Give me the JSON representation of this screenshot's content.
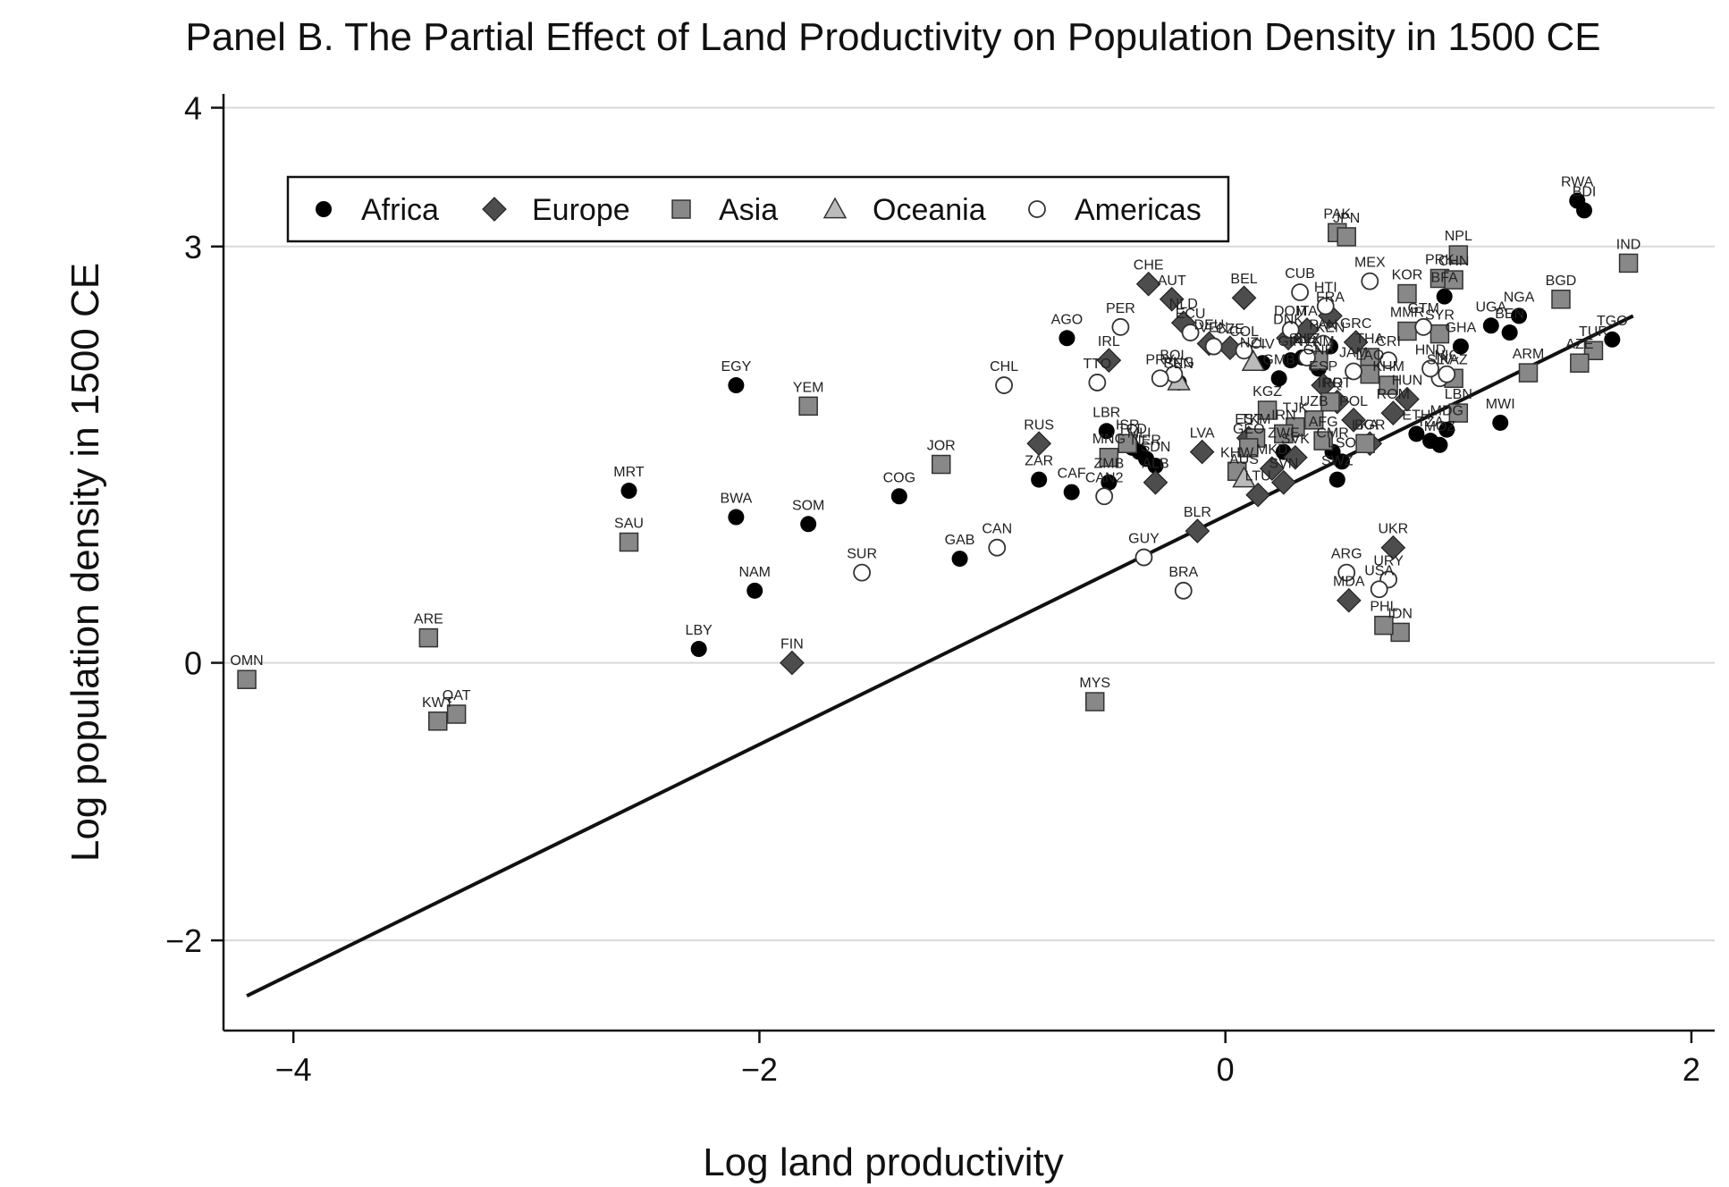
{
  "chart_data": {
    "type": "scatter",
    "title": "Panel B. The Partial Effect of Land Productivity on Population Density in 1500 CE",
    "xlabel": "Log land productivity",
    "ylabel": "Log population density in 1500 CE",
    "xlim": [
      -4.3,
      2.1
    ],
    "ylim": [
      -2.65,
      4.1
    ],
    "xticks": [
      {
        "value": -4,
        "label": "−4"
      },
      {
        "value": -2,
        "label": "−2"
      },
      {
        "value": 0,
        "label": "0"
      },
      {
        "value": 2,
        "label": "2"
      }
    ],
    "yticks": [
      {
        "value": 4,
        "label": "4"
      },
      {
        "value": 3,
        "label": "3"
      },
      {
        "value": 0,
        "label": "0"
      },
      {
        "value": -2,
        "label": "−2"
      }
    ],
    "grid": true,
    "legend_position": "top-left",
    "legend": [
      {
        "name": "Africa",
        "marker": "circle-filled",
        "color": "#000000"
      },
      {
        "name": "Europe",
        "marker": "diamond",
        "color": "#4d4d4d"
      },
      {
        "name": "Asia",
        "marker": "square",
        "color": "#888888"
      },
      {
        "name": "Oceania",
        "marker": "triangle",
        "color": "#bbbbbb"
      },
      {
        "name": "Americas",
        "marker": "circle-open",
        "color": "#ffffff"
      }
    ],
    "fit_line": {
      "x": [
        -4.2,
        1.75
      ],
      "y": [
        -2.4,
        2.5
      ]
    },
    "series": [
      {
        "name": "Africa",
        "points": [
          {
            "label": "RWA",
            "x": 1.51,
            "y": 3.33
          },
          {
            "label": "BDI",
            "x": 1.54,
            "y": 3.26
          },
          {
            "label": "BFA",
            "x": 0.94,
            "y": 2.64
          },
          {
            "label": "NGA",
            "x": 1.26,
            "y": 2.5
          },
          {
            "label": "UGA",
            "x": 1.14,
            "y": 2.43
          },
          {
            "label": "BEN",
            "x": 1.22,
            "y": 2.38
          },
          {
            "label": "TGO",
            "x": 1.66,
            "y": 2.33
          },
          {
            "label": "GHA",
            "x": 1.01,
            "y": 2.28
          },
          {
            "label": "AGO",
            "x": -0.68,
            "y": 2.34
          },
          {
            "label": "EGY",
            "x": -2.1,
            "y": 2.0
          },
          {
            "label": "MRT",
            "x": -2.56,
            "y": 1.24
          },
          {
            "label": "BWA",
            "x": -2.1,
            "y": 1.05
          },
          {
            "label": "SOM",
            "x": -1.79,
            "y": 1.0
          },
          {
            "label": "NAM",
            "x": -2.02,
            "y": 0.52
          },
          {
            "label": "LBY",
            "x": -2.26,
            "y": 0.1
          },
          {
            "label": "GAB",
            "x": -1.14,
            "y": 0.75
          },
          {
            "label": "COG",
            "x": -1.4,
            "y": 1.2
          },
          {
            "label": "ZAR",
            "x": -0.8,
            "y": 1.32
          },
          {
            "label": "CAF",
            "x": -0.66,
            "y": 1.23
          },
          {
            "label": "ZMB",
            "x": -0.5,
            "y": 1.3
          },
          {
            "label": "LBR",
            "x": -0.51,
            "y": 1.67
          },
          {
            "label": "TCD",
            "x": -0.4,
            "y": 1.55
          },
          {
            "label": "MLI",
            "x": -0.37,
            "y": 1.52
          },
          {
            "label": "NER",
            "x": -0.34,
            "y": 1.47
          },
          {
            "label": "SDN",
            "x": -0.3,
            "y": 1.42
          },
          {
            "label": "SEN",
            "x": -0.2,
            "y": 2.02
          },
          {
            "label": "CIV",
            "x": 0.16,
            "y": 2.16
          },
          {
            "label": "GIN",
            "x": 0.28,
            "y": 2.18
          },
          {
            "label": "SLE",
            "x": 0.33,
            "y": 2.2
          },
          {
            "label": "GNB",
            "x": 0.4,
            "y": 2.12
          },
          {
            "label": "GMB",
            "x": 0.23,
            "y": 2.05
          },
          {
            "label": "CMR",
            "x": 0.46,
            "y": 1.52
          },
          {
            "label": "KEN",
            "x": 0.45,
            "y": 2.28
          },
          {
            "label": "ETH",
            "x": 0.82,
            "y": 1.65
          },
          {
            "label": "TZA",
            "x": 0.88,
            "y": 1.6
          },
          {
            "label": "MOZ",
            "x": 0.92,
            "y": 1.57
          },
          {
            "label": "MDG",
            "x": 0.95,
            "y": 1.68
          },
          {
            "label": "MWI",
            "x": 1.18,
            "y": 1.73
          },
          {
            "label": "SWZ",
            "x": 0.48,
            "y": 1.32
          },
          {
            "label": "LSO",
            "x": 0.5,
            "y": 1.45
          },
          {
            "label": "ZWE",
            "x": 0.25,
            "y": 1.52
          }
        ]
      },
      {
        "name": "Europe",
        "points": [
          {
            "label": "CHE",
            "x": -0.33,
            "y": 2.73
          },
          {
            "label": "AUT",
            "x": -0.23,
            "y": 2.62
          },
          {
            "label": "BEL",
            "x": 0.08,
            "y": 2.63
          },
          {
            "label": "NLD",
            "x": -0.18,
            "y": 2.45
          },
          {
            "label": "DEU",
            "x": -0.07,
            "y": 2.3
          },
          {
            "label": "CZE",
            "x": 0.02,
            "y": 2.27
          },
          {
            "label": "IRL",
            "x": -0.5,
            "y": 2.18
          },
          {
            "label": "FRA",
            "x": 0.45,
            "y": 2.5
          },
          {
            "label": "DNK",
            "x": 0.27,
            "y": 2.34
          },
          {
            "label": "GRC",
            "x": 0.56,
            "y": 2.31
          },
          {
            "label": "BGR",
            "x": 0.62,
            "y": 1.58
          },
          {
            "label": "ROM",
            "x": 0.72,
            "y": 1.8
          },
          {
            "label": "HUN",
            "x": 0.78,
            "y": 1.9
          },
          {
            "label": "ITA",
            "x": 0.35,
            "y": 2.4
          },
          {
            "label": "ESP",
            "x": 0.42,
            "y": 2.0
          },
          {
            "label": "PRT",
            "x": 0.48,
            "y": 1.88
          },
          {
            "label": "POL",
            "x": 0.55,
            "y": 1.75
          },
          {
            "label": "RUS",
            "x": -0.8,
            "y": 1.58
          },
          {
            "label": "FIN",
            "x": -1.86,
            "y": 0.0
          },
          {
            "label": "BLR",
            "x": -0.12,
            "y": 0.95
          },
          {
            "label": "UKR",
            "x": 0.72,
            "y": 0.83
          },
          {
            "label": "LVA",
            "x": -0.1,
            "y": 1.52
          },
          {
            "label": "LTU",
            "x": 0.14,
            "y": 1.21
          },
          {
            "label": "EST",
            "x": 0.1,
            "y": 1.62
          },
          {
            "label": "MDA",
            "x": 0.53,
            "y": 0.45
          },
          {
            "label": "SVK",
            "x": 0.3,
            "y": 1.48
          },
          {
            "label": "SVN",
            "x": 0.25,
            "y": 1.3
          },
          {
            "label": "ALB",
            "x": -0.3,
            "y": 1.3
          },
          {
            "label": "MKD",
            "x": 0.2,
            "y": 1.4
          }
        ]
      },
      {
        "name": "Asia",
        "points": [
          {
            "label": "PAK",
            "x": 0.48,
            "y": 3.1
          },
          {
            "label": "JPN",
            "x": 0.52,
            "y": 3.07
          },
          {
            "label": "NPL",
            "x": 1.0,
            "y": 2.94
          },
          {
            "label": "IND",
            "x": 1.73,
            "y": 2.88
          },
          {
            "label": "PRK",
            "x": 0.92,
            "y": 2.77
          },
          {
            "label": "CHN",
            "x": 0.98,
            "y": 2.76
          },
          {
            "label": "KOR",
            "x": 0.78,
            "y": 2.66
          },
          {
            "label": "BGD",
            "x": 1.44,
            "y": 2.62
          },
          {
            "label": "MMR",
            "x": 0.78,
            "y": 2.39
          },
          {
            "label": "SYR",
            "x": 0.92,
            "y": 2.37
          },
          {
            "label": "TUR",
            "x": 1.58,
            "y": 2.25
          },
          {
            "label": "AZE",
            "x": 1.52,
            "y": 2.16
          },
          {
            "label": "ARM",
            "x": 1.3,
            "y": 2.09
          },
          {
            "label": "KAZ",
            "x": 0.98,
            "y": 2.05
          },
          {
            "label": "THA",
            "x": 0.62,
            "y": 2.2
          },
          {
            "label": "VNM",
            "x": 0.4,
            "y": 2.18
          },
          {
            "label": "LAO",
            "x": 0.62,
            "y": 2.08
          },
          {
            "label": "KHM",
            "x": 0.7,
            "y": 2.0
          },
          {
            "label": "IRQ",
            "x": 0.45,
            "y": 1.88
          },
          {
            "label": "UZB",
            "x": 0.38,
            "y": 1.75
          },
          {
            "label": "TJK",
            "x": 0.3,
            "y": 1.7
          },
          {
            "label": "KGZ",
            "x": 0.18,
            "y": 1.82
          },
          {
            "label": "IRN",
            "x": 0.25,
            "y": 1.65
          },
          {
            "label": "AFG",
            "x": 0.42,
            "y": 1.6
          },
          {
            "label": "TKM",
            "x": 0.13,
            "y": 1.62
          },
          {
            "label": "GEO",
            "x": 0.1,
            "y": 1.55
          },
          {
            "label": "MNG",
            "x": -0.5,
            "y": 1.48
          },
          {
            "label": "ISR",
            "x": -0.42,
            "y": 1.58
          },
          {
            "label": "LBN",
            "x": 1.0,
            "y": 1.8
          },
          {
            "label": "JOR",
            "x": -1.22,
            "y": 1.43
          },
          {
            "label": "YEM",
            "x": -1.79,
            "y": 1.85
          },
          {
            "label": "SAU",
            "x": -2.56,
            "y": 0.87
          },
          {
            "label": "ARE",
            "x": -3.42,
            "y": 0.18
          },
          {
            "label": "OMN",
            "x": -4.2,
            "y": -0.12
          },
          {
            "label": "KWT",
            "x": -3.38,
            "y": -0.42
          },
          {
            "label": "QAT",
            "x": -3.3,
            "y": -0.37
          },
          {
            "label": "MYS",
            "x": -0.56,
            "y": -0.28
          },
          {
            "label": "IDN",
            "x": 0.75,
            "y": 0.22
          },
          {
            "label": "PHL",
            "x": 0.68,
            "y": 0.27
          },
          {
            "label": "LKA",
            "x": 0.6,
            "y": 1.58
          },
          {
            "label": "KHW",
            "x": 0.05,
            "y": 1.38
          }
        ]
      },
      {
        "name": "Oceania",
        "points": [
          {
            "label": "NZL",
            "x": 0.12,
            "y": 2.17
          },
          {
            "label": "AUS",
            "x": 0.08,
            "y": 1.33
          },
          {
            "label": "PNG",
            "x": -0.2,
            "y": 2.03
          }
        ]
      },
      {
        "name": "Americas",
        "points": [
          {
            "label": "MEX",
            "x": 0.62,
            "y": 2.75
          },
          {
            "label": "CUB",
            "x": 0.32,
            "y": 2.67
          },
          {
            "label": "HTI",
            "x": 0.43,
            "y": 2.57
          },
          {
            "label": "DOM",
            "x": 0.28,
            "y": 2.4
          },
          {
            "label": "GTM",
            "x": 0.85,
            "y": 2.42
          },
          {
            "label": "SLV",
            "x": 0.92,
            "y": 2.05
          },
          {
            "label": "HND",
            "x": 0.88,
            "y": 2.12
          },
          {
            "label": "NIC",
            "x": 0.95,
            "y": 2.08
          },
          {
            "label": "CRI",
            "x": 0.7,
            "y": 2.18
          },
          {
            "label": "PAN",
            "x": 0.42,
            "y": 2.3
          },
          {
            "label": "COL",
            "x": 0.08,
            "y": 2.25
          },
          {
            "label": "VEN",
            "x": -0.05,
            "y": 2.28
          },
          {
            "label": "ECU",
            "x": -0.15,
            "y": 2.38
          },
          {
            "label": "PER",
            "x": -0.45,
            "y": 2.42
          },
          {
            "label": "BOL",
            "x": -0.22,
            "y": 2.08
          },
          {
            "label": "PRY",
            "x": -0.28,
            "y": 2.05
          },
          {
            "label": "CHL",
            "x": -0.95,
            "y": 2.0
          },
          {
            "label": "CAN",
            "x": -0.98,
            "y": 0.83
          },
          {
            "label": "SUR",
            "x": -1.56,
            "y": 0.65
          },
          {
            "label": "GUY",
            "x": -0.35,
            "y": 0.76
          },
          {
            "label": "BRA",
            "x": -0.18,
            "y": 0.52
          },
          {
            "label": "ARG",
            "x": 0.52,
            "y": 0.65
          },
          {
            "label": "URY",
            "x": 0.7,
            "y": 0.6
          },
          {
            "label": "USA",
            "x": 0.66,
            "y": 0.53
          },
          {
            "label": "BLZ",
            "x": 0.35,
            "y": 2.2
          },
          {
            "label": "JAM",
            "x": 0.55,
            "y": 2.1
          },
          {
            "label": "TTO",
            "x": -0.55,
            "y": 2.02
          },
          {
            "label": "CAN2",
            "x": -0.52,
            "y": 1.2
          }
        ]
      }
    ]
  }
}
